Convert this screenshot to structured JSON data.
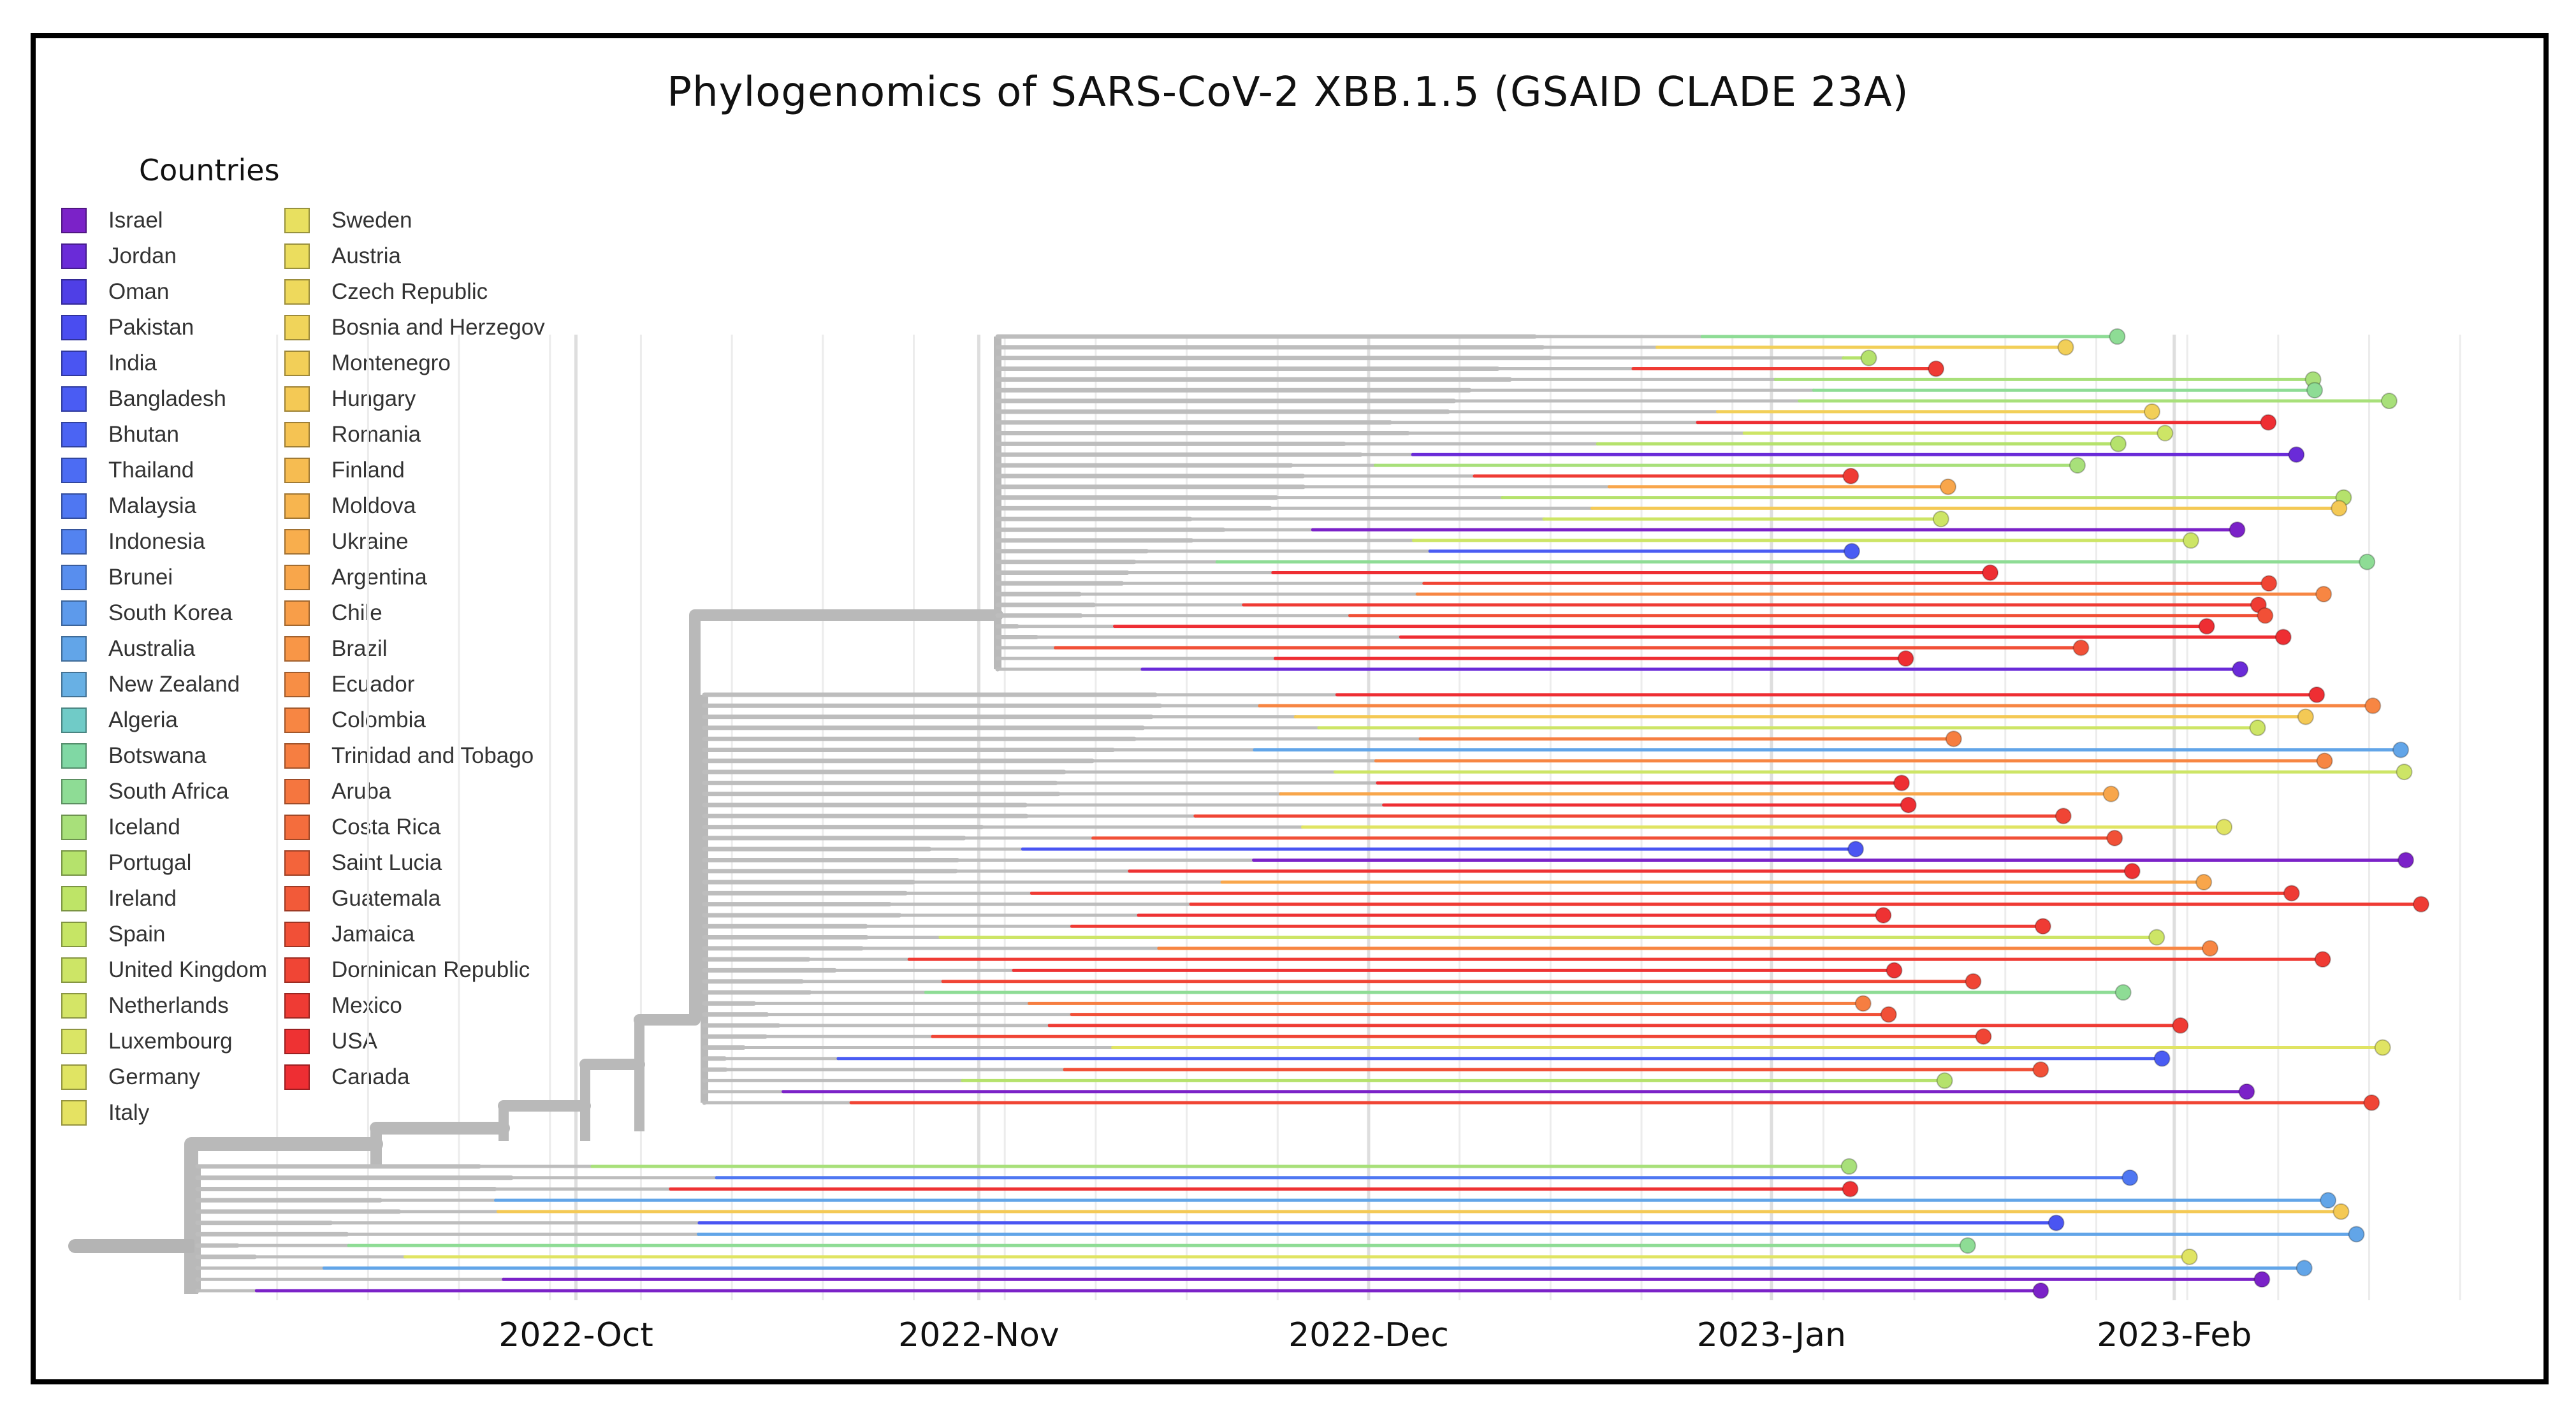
{
  "chart_data": {
    "type": "phylogenetic-tree",
    "title": "Phylogenomics of SARS-CoV-2 XBB.1.5 (GSAID CLADE 23A)",
    "x_axis": {
      "type": "date",
      "range": [
        "2022-09-01",
        "2023-02-25"
      ],
      "ticks": [
        {
          "date": "2022-10-01",
          "label": "2022-Oct"
        },
        {
          "date": "2022-11-01",
          "label": "2022-Nov"
        },
        {
          "date": "2022-12-01",
          "label": "2022-Dec"
        },
        {
          "date": "2023-01-01",
          "label": "2023-Jan"
        },
        {
          "date": "2023-02-01",
          "label": "2023-Feb"
        }
      ]
    },
    "legend": {
      "title": "Countries",
      "entries": [
        {
          "name": "Israel",
          "color": "#7B22C8"
        },
        {
          "name": "Jordan",
          "color": "#6A2BD8"
        },
        {
          "name": "Oman",
          "color": "#4F3FE6"
        },
        {
          "name": "Pakistan",
          "color": "#4A4DF0"
        },
        {
          "name": "India",
          "color": "#4A55F2"
        },
        {
          "name": "Bangladesh",
          "color": "#4A5CF3"
        },
        {
          "name": "Bhutan",
          "color": "#4B64F3"
        },
        {
          "name": "Thailand",
          "color": "#4C6CF3"
        },
        {
          "name": "Malaysia",
          "color": "#4F77F2"
        },
        {
          "name": "Indonesia",
          "color": "#5383F0"
        },
        {
          "name": "Brunei",
          "color": "#588EEE"
        },
        {
          "name": "South Korea",
          "color": "#5D9AEB"
        },
        {
          "name": "Australia",
          "color": "#62A5E8"
        },
        {
          "name": "New Zealand",
          "color": "#68B0E4"
        },
        {
          "name": "Algeria",
          "color": "#70CBC7"
        },
        {
          "name": "Botswana",
          "color": "#80D8A4"
        },
        {
          "name": "South Africa",
          "color": "#8EDC95"
        },
        {
          "name": "Iceland",
          "color": "#A8E07A"
        },
        {
          "name": "Portugal",
          "color": "#B5E26C"
        },
        {
          "name": "Ireland",
          "color": "#BEE467"
        },
        {
          "name": "Spain",
          "color": "#C6E565"
        },
        {
          "name": "United Kingdom",
          "color": "#CDE566"
        },
        {
          "name": "Netherlands",
          "color": "#D4E566"
        },
        {
          "name": "Luxembourg",
          "color": "#DAE565"
        },
        {
          "name": "Germany",
          "color": "#E0E463"
        },
        {
          "name": "Italy",
          "color": "#E5E262"
        },
        {
          "name": "Sweden",
          "color": "#E8E060"
        },
        {
          "name": "Austria",
          "color": "#EBDD5E"
        },
        {
          "name": "Czech Republic",
          "color": "#EED95C"
        },
        {
          "name": "Bosnia and Herzegov",
          "color": "#F0D45A"
        },
        {
          "name": "Montenegro",
          "color": "#F2CF58"
        },
        {
          "name": "Hungary",
          "color": "#F4C955"
        },
        {
          "name": "Romania",
          "color": "#F5C353"
        },
        {
          "name": "Finland",
          "color": "#F6BC51"
        },
        {
          "name": "Moldova",
          "color": "#F7B54F"
        },
        {
          "name": "Ukraine",
          "color": "#F8AE4D"
        },
        {
          "name": "Argentina",
          "color": "#F8A64B"
        },
        {
          "name": "Chile",
          "color": "#F89E49"
        },
        {
          "name": "Brazil",
          "color": "#F89647"
        },
        {
          "name": "Ecuador",
          "color": "#F78E45"
        },
        {
          "name": "Colombia",
          "color": "#F78643"
        },
        {
          "name": "Trinidad and Tobago",
          "color": "#F67E41"
        },
        {
          "name": "Aruba",
          "color": "#F5763F"
        },
        {
          "name": "Costa Rica",
          "color": "#F46D3D"
        },
        {
          "name": "Saint Lucia",
          "color": "#F3643B"
        },
        {
          "name": "Guatemala",
          "color": "#F25A39"
        },
        {
          "name": "Jamaica",
          "color": "#F15037"
        },
        {
          "name": "Dominican Republic",
          "color": "#F04535"
        },
        {
          "name": "Mexico",
          "color": "#EF3B34"
        },
        {
          "name": "USA",
          "color": "#EE3233"
        },
        {
          "name": "Canada",
          "color": "#EE2E33"
        }
      ]
    }
  }
}
